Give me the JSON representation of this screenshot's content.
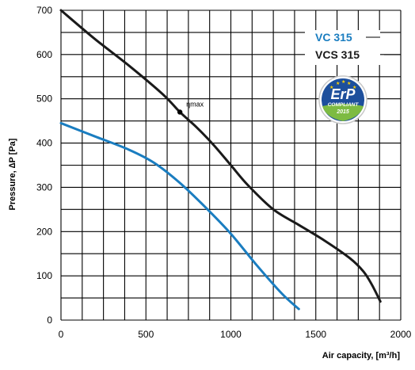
{
  "chart_data": {
    "type": "line",
    "xlabel": "Air capacity, [m³/h]",
    "ylabel": "Pressure, ∆P [Pa]",
    "xlim": [
      0,
      2000
    ],
    "ylim": [
      0,
      700
    ],
    "x_ticks": [
      "0",
      "500",
      "1000",
      "1500",
      "2000"
    ],
    "y_ticks": [
      "0",
      "100",
      "200",
      "300",
      "400",
      "500",
      "600",
      "700"
    ],
    "grid": true,
    "legend_position": "top-right",
    "series": [
      {
        "name": "VC 315",
        "color": "#1a7dc0",
        "points": [
          [
            0,
            445
          ],
          [
            200,
            415
          ],
          [
            400,
            385
          ],
          [
            550,
            355
          ],
          [
            700,
            310
          ],
          [
            850,
            255
          ],
          [
            1000,
            195
          ],
          [
            1150,
            125
          ],
          [
            1300,
            60
          ],
          [
            1400,
            25
          ]
        ]
      },
      {
        "name": "VCS 315",
        "color": "#1a1a1a",
        "points": [
          [
            0,
            700
          ],
          [
            200,
            635
          ],
          [
            400,
            575
          ],
          [
            600,
            510
          ],
          [
            700,
            470
          ],
          [
            800,
            435
          ],
          [
            900,
            395
          ],
          [
            1000,
            350
          ],
          [
            1100,
            305
          ],
          [
            1250,
            250
          ],
          [
            1400,
            215
          ],
          [
            1550,
            180
          ],
          [
            1700,
            140
          ],
          [
            1780,
            110
          ],
          [
            1830,
            80
          ],
          [
            1880,
            42
          ]
        ]
      }
    ],
    "annotations": [
      {
        "text": "ηmax",
        "x": 700,
        "y": 470,
        "series": "VCS 315"
      }
    ]
  },
  "badge": {
    "main": "ErP",
    "sub": "COMPLIANT",
    "year": "2015",
    "color": "#1d4f9c",
    "accent": "#7dbb42"
  }
}
